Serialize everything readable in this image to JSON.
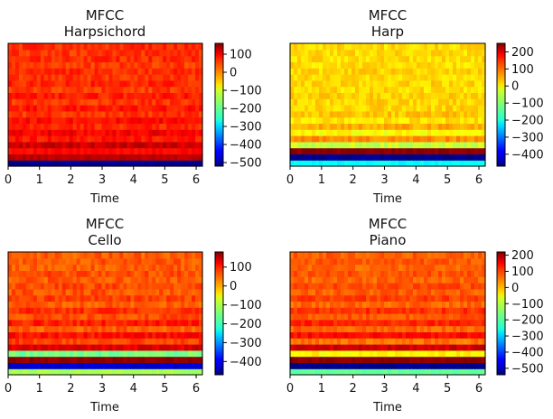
{
  "chart_data": [
    {
      "type": "heatmap",
      "title": "MFCC\nHarpsichord",
      "title_lines": [
        "MFCC",
        "Harpsichord"
      ],
      "xlabel": "Time",
      "ylabel": "",
      "xlim": [
        0,
        6.2
      ],
      "xticks": [
        0,
        1,
        2,
        3,
        4,
        5,
        6
      ],
      "colormap": "jet",
      "colorbar_range": [
        -520,
        160
      ],
      "colorbar_ticks": [
        100,
        0,
        -100,
        -200,
        -300,
        -400,
        -500
      ],
      "n_coefficients": 20,
      "row_means_bottom_to_top": [
        -510,
        120,
        70,
        110,
        60,
        80,
        50,
        70,
        40,
        60,
        40,
        55,
        35,
        50,
        40,
        45,
        35,
        45,
        40,
        45
      ]
    },
    {
      "type": "heatmap",
      "title": "MFCC\nHarp",
      "title_lines": [
        "MFCC",
        "Harp"
      ],
      "xlabel": "Time",
      "ylabel": "",
      "xlim": [
        0,
        6.2
      ],
      "xticks": [
        0,
        1,
        2,
        3,
        4,
        5,
        6
      ],
      "colormap": "jet",
      "colorbar_range": [
        -470,
        250
      ],
      "colorbar_ticks": [
        200,
        100,
        0,
        -100,
        -200,
        -300,
        -400
      ],
      "n_coefficients": 20,
      "row_means_bottom_to_top": [
        -200,
        -460,
        240,
        -60,
        60,
        -20,
        40,
        0,
        20,
        10,
        10,
        15,
        5,
        10,
        5,
        10,
        5,
        5,
        5,
        5
      ]
    },
    {
      "type": "heatmap",
      "title": "MFCC\nCello",
      "title_lines": [
        "MFCC",
        "Cello"
      ],
      "xlabel": "Time",
      "ylabel": "",
      "xlim": [
        0,
        6.2
      ],
      "xticks": [
        0,
        1,
        2,
        3,
        4,
        5,
        6
      ],
      "colormap": "jet",
      "colorbar_range": [
        -470,
        180
      ],
      "colorbar_ticks": [
        100,
        0,
        -100,
        -200,
        -300,
        -400
      ],
      "n_coefficients": 20,
      "row_means_bottom_to_top": [
        -120,
        -420,
        170,
        -150,
        120,
        60,
        90,
        40,
        80,
        50,
        70,
        40,
        60,
        45,
        55,
        40,
        50,
        40,
        45,
        40
      ]
    },
    {
      "type": "heatmap",
      "title": "MFCC\nPiano",
      "title_lines": [
        "MFCC",
        "Piano"
      ],
      "xlabel": "Time",
      "ylabel": "",
      "xlim": [
        0,
        6.2
      ],
      "xticks": [
        0,
        1,
        2,
        3,
        4,
        5,
        6
      ],
      "colormap": "jet",
      "colorbar_range": [
        -540,
        220
      ],
      "colorbar_ticks": [
        200,
        100,
        0,
        -100,
        -200,
        -300,
        -400,
        -500
      ],
      "n_coefficients": 20,
      "row_means_bottom_to_top": [
        -180,
        -530,
        210,
        -60,
        160,
        40,
        120,
        50,
        100,
        60,
        90,
        50,
        80,
        55,
        70,
        50,
        65,
        50,
        60,
        55
      ]
    }
  ]
}
